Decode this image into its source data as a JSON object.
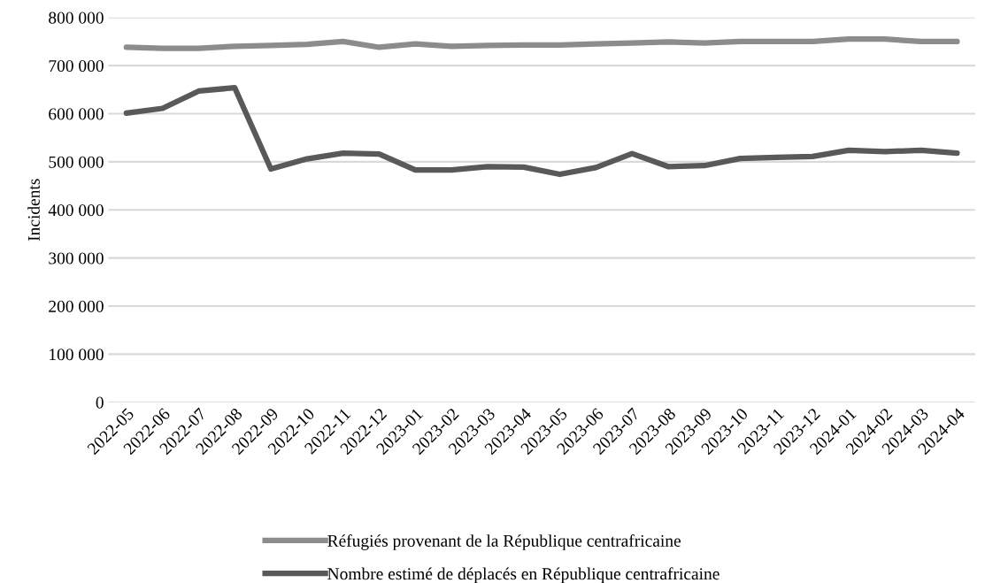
{
  "chart_data": {
    "type": "line",
    "ylabel": "Incidents",
    "categories": [
      "2022-05",
      "2022-06",
      "2022-07",
      "2022-08",
      "2022-09",
      "2022-10",
      "2022-11",
      "2022-12",
      "2023-01",
      "2023-02",
      "2023-03",
      "2023-04",
      "2023-05",
      "2023-06",
      "2023-07",
      "2023-08",
      "2023-09",
      "2023-10",
      "2023-11",
      "2023-12",
      "2024-01",
      "2024-02",
      "2024-03",
      "2024-04"
    ],
    "series": [
      {
        "name": "Réfugiés provenant de la République centrafricaine",
        "color": "#8c8c8c",
        "values": [
          738000,
          736000,
          736000,
          740000,
          742000,
          744000,
          750000,
          738000,
          745000,
          740000,
          742000,
          743000,
          743000,
          745000,
          747000,
          749000,
          747000,
          750000,
          750000,
          750000,
          755000,
          755000,
          750000,
          750000
        ]
      },
      {
        "name": "Nombre estimé de déplacés en République centrafricaine",
        "color": "#595959",
        "values": [
          601000,
          611000,
          647000,
          654000,
          485000,
          506000,
          518000,
          516000,
          483000,
          483000,
          490000,
          489000,
          474000,
          488000,
          517000,
          490000,
          492000,
          507000,
          509000,
          511000,
          524000,
          521000,
          524000,
          518000
        ]
      }
    ],
    "ylim": [
      0,
      800000
    ],
    "yticks": [
      {
        "value": 0,
        "label": "0"
      },
      {
        "value": 100000,
        "label": "100 000"
      },
      {
        "value": 200000,
        "label": "200 000"
      },
      {
        "value": 300000,
        "label": "300 000"
      },
      {
        "value": 400000,
        "label": "400 000"
      },
      {
        "value": 500000,
        "label": "500 000"
      },
      {
        "value": 600000,
        "label": "600 000"
      },
      {
        "value": 700000,
        "label": "700 000"
      },
      {
        "value": 800000,
        "label": "800 000"
      }
    ],
    "grid": "y",
    "legend": "bottom",
    "marker": "none",
    "line_style": "solid"
  }
}
